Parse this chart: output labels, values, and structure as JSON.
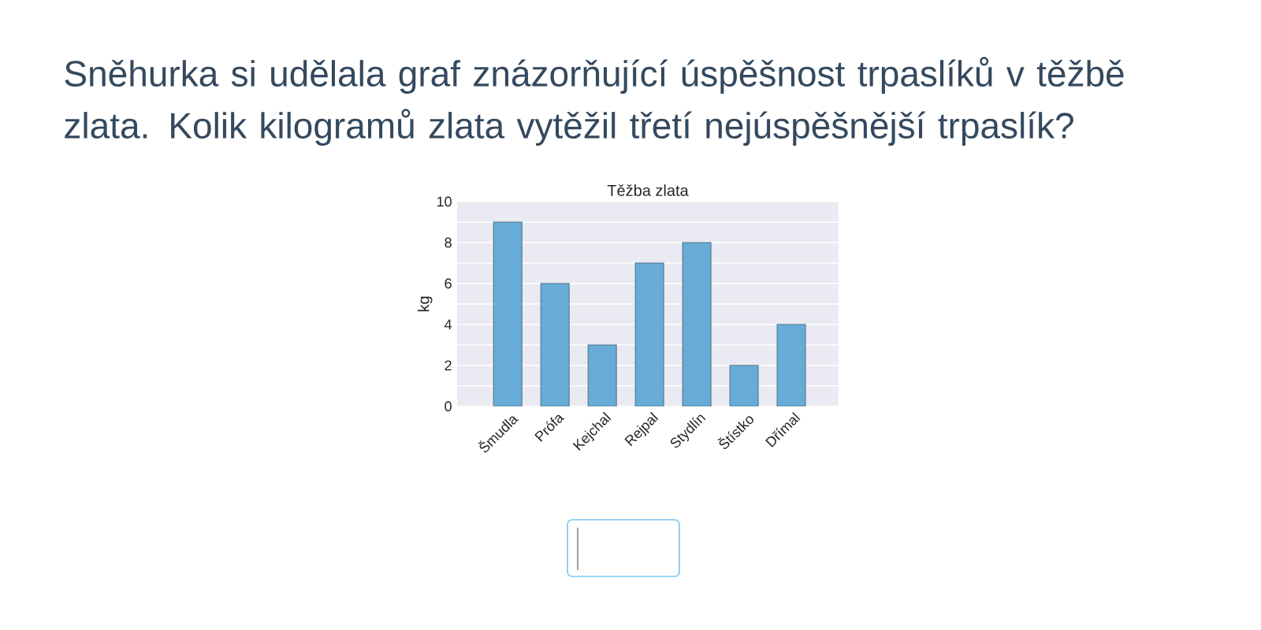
{
  "chart_data": {
    "type": "bar",
    "title": "Těžba zlata",
    "ylabel": "kg",
    "annotations": [
      "Sněhurka si udělala graf znázorňující úspěšnost trpaslíků v těžbě zlata. Kolik kilogramů zlata vytěžil třetí nejúspěšnější trpaslík?"
    ],
    "categories": [
      "Šmudla",
      "Prófa",
      "Kejchal",
      "Rejpal",
      "Stydlín",
      "Štístko",
      "Dřímal"
    ],
    "values": [
      9,
      6,
      3,
      7,
      8,
      2,
      4
    ],
    "color": "#67acd6",
    "ylim": [
      0,
      10
    ],
    "yticks": [
      0,
      {
        "value": 1,
        "label": null
      },
      2,
      {
        "value": 3,
        "label": null
      },
      4,
      {
        "value": 5,
        "label": null
      },
      6,
      {
        "value": 7,
        "label": null
      },
      8,
      {
        "value": 9,
        "label": null
      },
      10
    ],
    "grid": "y"
  }
}
